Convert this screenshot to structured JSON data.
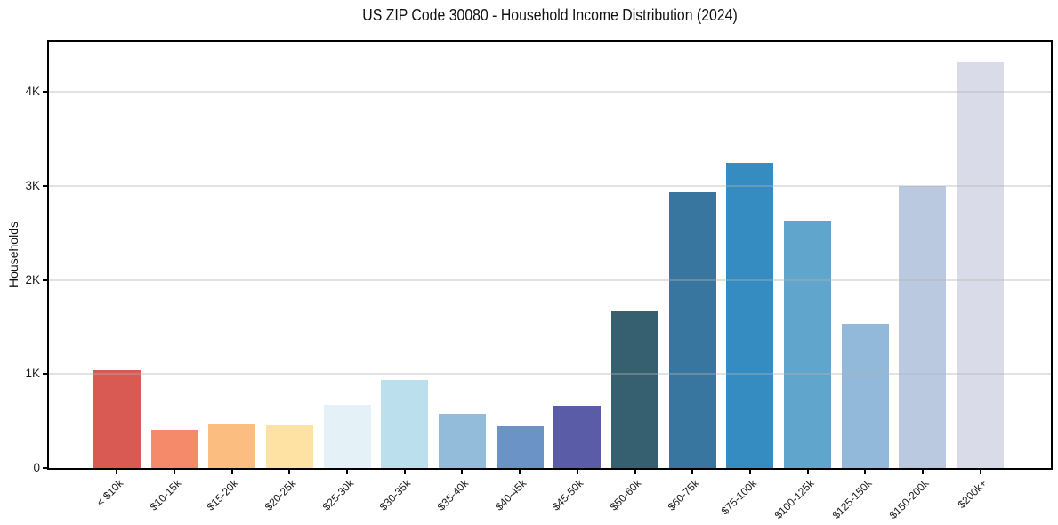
{
  "chart_data": {
    "type": "bar",
    "title": "US ZIP Code 30080 - Household Income Distribution (2024)",
    "xlabel": "",
    "ylabel": "Households",
    "categories": [
      "< $10k",
      "$10-15k",
      "$15-20k",
      "$20-25k",
      "$25-30k",
      "$30-35k",
      "$35-40k",
      "$40-45k",
      "$45-50k",
      "$50-60k",
      "$60-75k",
      "$75-100k",
      "$100-125k",
      "$125-150k",
      "$150-200k",
      "$200k+"
    ],
    "values": [
      1040,
      410,
      470,
      450,
      670,
      940,
      580,
      440,
      660,
      1670,
      2930,
      3240,
      2630,
      1530,
      3000,
      4310
    ],
    "bar_colors": [
      "#d85a52",
      "#f58a6a",
      "#fbbd80",
      "#fde2a3",
      "#e4f1f7",
      "#bbdfed",
      "#92bcda",
      "#6b93c6",
      "#5a5ca8",
      "#36606f",
      "#38759f",
      "#348cc1",
      "#60a5cc",
      "#93b9da",
      "#bac9e0",
      "#d9dbe8"
    ],
    "yticks": {
      "values": [
        0,
        1000,
        2000,
        3000,
        4000
      ],
      "labels": [
        "0",
        "1K",
        "2K",
        "3K",
        "4K"
      ]
    },
    "ylim": [
      0,
      4530
    ],
    "grid": "horizontal-over-bars",
    "legend": "none",
    "frame": "full-box",
    "xtick_rotation_deg": 45
  }
}
